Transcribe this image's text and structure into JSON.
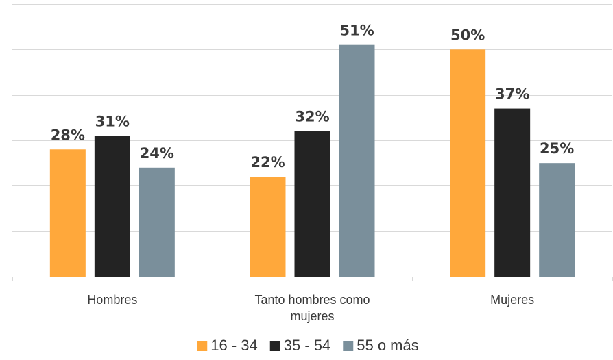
{
  "chart_data": {
    "type": "bar",
    "categories": [
      [
        "Hombres"
      ],
      [
        "Tanto hombres como",
        "mujeres"
      ],
      [
        "Mujeres"
      ]
    ],
    "series": [
      {
        "name": "16 - 34",
        "color": "#FFA83B",
        "values": [
          28,
          22,
          50
        ],
        "labels": [
          "28%",
          "22%",
          "50%"
        ]
      },
      {
        "name": "35 - 54",
        "color": "#232323",
        "values": [
          31,
          32,
          37
        ],
        "labels": [
          "31%",
          "32%",
          "37%"
        ]
      },
      {
        "name": "55 o más",
        "color": "#7A8F9B",
        "values": [
          24,
          51,
          25
        ],
        "labels": [
          "24%",
          "51%",
          "25%"
        ]
      }
    ],
    "ylim": [
      0,
      60
    ],
    "ytick_step": 10,
    "grid": true,
    "legend": "bottom",
    "title": "",
    "xlabel": "",
    "ylabel": ""
  }
}
